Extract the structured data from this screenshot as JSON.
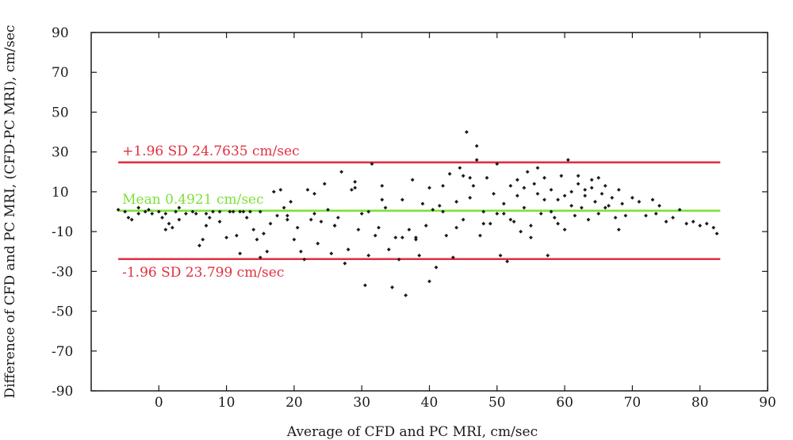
{
  "chart_data": {
    "type": "scatter",
    "title": "",
    "xlabel": "Average of CFD and PC MRI, cm/sec",
    "ylabel": "Difference of CFD and PC MRI, (CFD-PC MRI), cm/sec",
    "xlim": [
      -10,
      90
    ],
    "ylim": [
      -90,
      90
    ],
    "xticks": [
      0,
      10,
      20,
      30,
      40,
      50,
      60,
      70,
      80,
      90
    ],
    "yticks": [
      90,
      70,
      50,
      30,
      10,
      -10,
      -30,
      -50,
      -70,
      -90
    ],
    "grid": false,
    "reference_lines": [
      {
        "label": "+1.96 SD 24.7635 cm/sec",
        "y": 24.7635,
        "color": "#e03040"
      },
      {
        "label": "Mean 0.4921 cm/sec",
        "y": 0.4921,
        "color": "#7ee03a"
      },
      {
        "label": "-1.96 SD 23.799 cm/sec",
        "y": -23.799,
        "color": "#e03040"
      }
    ],
    "reference_x_range": [
      -6,
      83
    ],
    "point_color": "#1a1a1a",
    "points": [
      [
        -6,
        1
      ],
      [
        -5,
        0
      ],
      [
        -4.5,
        -3
      ],
      [
        -4,
        -4
      ],
      [
        -3,
        2
      ],
      [
        -2,
        0
      ],
      [
        -1.5,
        1
      ],
      [
        -1,
        -1
      ],
      [
        0,
        0
      ],
      [
        0.5,
        -3
      ],
      [
        1,
        -9
      ],
      [
        1.5,
        -6
      ],
      [
        2,
        -8
      ],
      [
        2.5,
        0
      ],
      [
        3,
        2
      ],
      [
        4,
        -1
      ],
      [
        5,
        0
      ],
      [
        5.5,
        -1
      ],
      [
        6,
        -17
      ],
      [
        6.5,
        -14
      ],
      [
        7,
        -7
      ],
      [
        7.5,
        -3
      ],
      [
        8,
        0
      ],
      [
        9,
        -5
      ],
      [
        10,
        -13
      ],
      [
        10.5,
        0
      ],
      [
        11,
        0
      ],
      [
        11.5,
        -12
      ],
      [
        12,
        -21
      ],
      [
        12.5,
        0
      ],
      [
        13,
        -3
      ],
      [
        13.5,
        0
      ],
      [
        14,
        -9
      ],
      [
        14.5,
        -14
      ],
      [
        15,
        -23
      ],
      [
        15.5,
        -11
      ],
      [
        16,
        -20
      ],
      [
        16.5,
        -6
      ],
      [
        17,
        10
      ],
      [
        17.5,
        -2
      ],
      [
        18,
        11
      ],
      [
        18.5,
        2
      ],
      [
        19,
        -4
      ],
      [
        19.5,
        5
      ],
      [
        20,
        -14
      ],
      [
        20.5,
        -8
      ],
      [
        21,
        -20
      ],
      [
        21.5,
        -24
      ],
      [
        22,
        11
      ],
      [
        22.5,
        -4
      ],
      [
        23,
        9
      ],
      [
        23.5,
        -16
      ],
      [
        24,
        -5
      ],
      [
        24.5,
        14
      ],
      [
        25,
        1
      ],
      [
        25.5,
        -21
      ],
      [
        26,
        -7
      ],
      [
        26.5,
        -3
      ],
      [
        27,
        20
      ],
      [
        27.5,
        -26
      ],
      [
        28,
        -19
      ],
      [
        28.5,
        11
      ],
      [
        29,
        15
      ],
      [
        29.5,
        -9
      ],
      [
        30,
        -1
      ],
      [
        30.5,
        -37
      ],
      [
        31,
        -22
      ],
      [
        31.5,
        24
      ],
      [
        32,
        -12
      ],
      [
        32.5,
        -8
      ],
      [
        33,
        13
      ],
      [
        33.5,
        2
      ],
      [
        34,
        -19
      ],
      [
        34.5,
        -38
      ],
      [
        35,
        -13
      ],
      [
        35.5,
        -24
      ],
      [
        36,
        6
      ],
      [
        36.5,
        -42
      ],
      [
        37,
        -9
      ],
      [
        37.5,
        16
      ],
      [
        38,
        -14
      ],
      [
        38.5,
        -22
      ],
      [
        39,
        4
      ],
      [
        39.5,
        -7
      ],
      [
        40,
        -35
      ],
      [
        40.5,
        1
      ],
      [
        41,
        -28
      ],
      [
        41.5,
        3
      ],
      [
        42,
        13
      ],
      [
        42.5,
        -12
      ],
      [
        43,
        19
      ],
      [
        43.5,
        -23
      ],
      [
        44,
        -8
      ],
      [
        44.5,
        22
      ],
      [
        45,
        -4
      ],
      [
        45.5,
        40
      ],
      [
        46,
        7
      ],
      [
        46.5,
        13
      ],
      [
        47,
        33
      ],
      [
        47.5,
        -12
      ],
      [
        48,
        0
      ],
      [
        48.5,
        17
      ],
      [
        49,
        -6
      ],
      [
        49.5,
        9
      ],
      [
        50,
        -1
      ],
      [
        50.5,
        -22
      ],
      [
        51,
        4
      ],
      [
        51.5,
        -25
      ],
      [
        52,
        13
      ],
      [
        52.5,
        -5
      ],
      [
        53,
        16
      ],
      [
        53.5,
        -10
      ],
      [
        54,
        2
      ],
      [
        54.5,
        20
      ],
      [
        55,
        -7
      ],
      [
        55.5,
        14
      ],
      [
        56,
        9
      ],
      [
        56.5,
        -1
      ],
      [
        57,
        17
      ],
      [
        57.5,
        -22
      ],
      [
        58,
        11
      ],
      [
        58.5,
        -3
      ],
      [
        59,
        6
      ],
      [
        59.5,
        18
      ],
      [
        60,
        -9
      ],
      [
        60.5,
        26
      ],
      [
        61,
        10
      ],
      [
        61.5,
        -2
      ],
      [
        62,
        14
      ],
      [
        62.5,
        2
      ],
      [
        63,
        8
      ],
      [
        63.5,
        -4
      ],
      [
        64,
        12
      ],
      [
        64.5,
        5
      ],
      [
        65,
        -1
      ],
      [
        65.5,
        9
      ],
      [
        66,
        13
      ],
      [
        66.5,
        3
      ],
      [
        67,
        7
      ],
      [
        67.5,
        -3
      ],
      [
        68,
        11
      ],
      [
        68.5,
        4
      ],
      [
        69,
        -2
      ],
      [
        70,
        7
      ],
      [
        71,
        5
      ],
      [
        72,
        -2
      ],
      [
        73,
        6
      ],
      [
        73.5,
        -1
      ],
      [
        74,
        3
      ],
      [
        75,
        -5
      ],
      [
        76,
        -3
      ],
      [
        77,
        1
      ],
      [
        78,
        -6
      ],
      [
        79,
        -5
      ],
      [
        80,
        -7
      ],
      [
        81,
        -6
      ],
      [
        82,
        -8
      ],
      [
        82.5,
        -11
      ],
      [
        -3,
        -1
      ],
      [
        1,
        -1
      ],
      [
        3,
        -4
      ],
      [
        7,
        -1
      ],
      [
        9,
        0
      ],
      [
        12,
        0
      ],
      [
        15,
        0
      ],
      [
        19,
        -2
      ],
      [
        23,
        -1
      ],
      [
        26,
        -7
      ],
      [
        29,
        12
      ],
      [
        31,
        0
      ],
      [
        33,
        6
      ],
      [
        36,
        -13
      ],
      [
        38,
        -13
      ],
      [
        40,
        12
      ],
      [
        42,
        0
      ],
      [
        44,
        5
      ],
      [
        46,
        17
      ],
      [
        48,
        -6
      ],
      [
        50,
        24
      ],
      [
        52,
        -4
      ],
      [
        54,
        12
      ],
      [
        56,
        22
      ],
      [
        58,
        0
      ],
      [
        60,
        8
      ],
      [
        62,
        18
      ],
      [
        64,
        16
      ],
      [
        66,
        2
      ],
      [
        68,
        -9
      ],
      [
        45,
        18
      ],
      [
        47,
        26
      ],
      [
        51,
        -1
      ],
      [
        53,
        8
      ],
      [
        55,
        -13
      ],
      [
        57,
        6
      ],
      [
        59,
        -6
      ],
      [
        61,
        3
      ],
      [
        63,
        11
      ],
      [
        65,
        17
      ]
    ]
  }
}
